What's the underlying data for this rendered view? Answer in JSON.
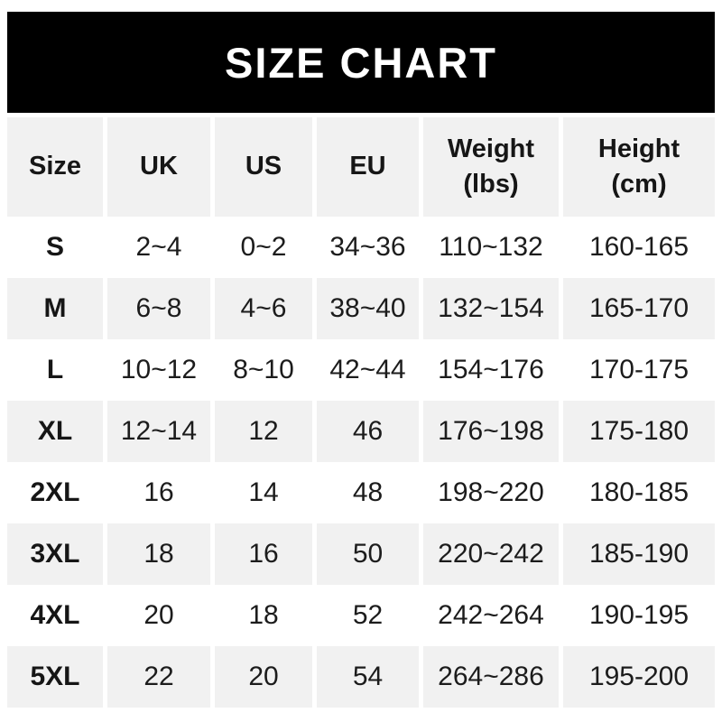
{
  "title": "SIZE CHART",
  "colors": {
    "banner_bg": "#000000",
    "banner_text": "#ffffff",
    "alt_row_bg": "#f1f1f1",
    "cell_text": "#1c1c1c"
  },
  "chart_data": {
    "type": "table",
    "title": "SIZE CHART",
    "columns": [
      "Size",
      "UK",
      "US",
      "EU",
      "Weight\n(lbs)",
      "Height\n(cm)"
    ],
    "rows": [
      [
        "S",
        "2~4",
        "0~2",
        "34~36",
        "110~132",
        "160-165"
      ],
      [
        "M",
        "6~8",
        "4~6",
        "38~40",
        "132~154",
        "165-170"
      ],
      [
        "L",
        "10~12",
        "8~10",
        "42~44",
        "154~176",
        "170-175"
      ],
      [
        "XL",
        "12~14",
        "12",
        "46",
        "176~198",
        "175-180"
      ],
      [
        "2XL",
        "16",
        "14",
        "48",
        "198~220",
        "180-185"
      ],
      [
        "3XL",
        "18",
        "16",
        "50",
        "220~242",
        "185-190"
      ],
      [
        "4XL",
        "20",
        "18",
        "52",
        "242~264",
        "190-195"
      ],
      [
        "5XL",
        "22",
        "20",
        "54",
        "264~286",
        "195-200"
      ]
    ],
    "layout": {
      "alternating_rows": true,
      "column_separators": "white-gaps",
      "header_background": "#f1f1f1"
    }
  }
}
